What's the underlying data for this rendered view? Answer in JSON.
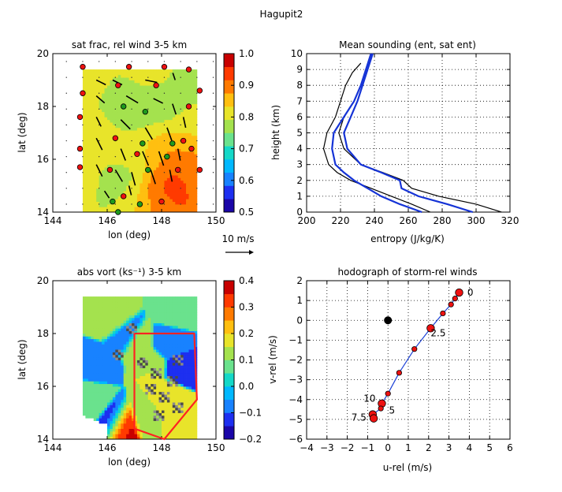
{
  "figure": {
    "title": "Hagupit2"
  },
  "colors": {
    "positive": "#ffcf25",
    "negative": "#1a4fd0",
    "red_box": "#ff2222",
    "sounding_env": "#000000",
    "sounding_sat": "#1533d6"
  },
  "chart_data": [
    {
      "id": "satfrac",
      "type": "heatmap",
      "title": "sat frac, rel wind 3-5 km",
      "xlabel": "lon (deg)",
      "ylabel": "lat (deg)",
      "xlim": [
        144,
        150
      ],
      "ylim": [
        14,
        20
      ],
      "xticks": [
        "144",
        "146",
        "148",
        "150"
      ],
      "yticks": [
        "14",
        "16",
        "18",
        "20"
      ],
      "colorbar": {
        "ticks": [
          "0.5",
          "0.6",
          "0.7",
          "0.8",
          "0.9",
          "1.0"
        ],
        "range": [
          0.5,
          1.0
        ],
        "colors": [
          "#1a06a8",
          "#1d2ff0",
          "#1882ff",
          "#00b8ff",
          "#14d8c8",
          "#6ae28d",
          "#a4e24e",
          "#e8e42a",
          "#ffbf10",
          "#ff7a00",
          "#ff3a00",
          "#c80000"
        ]
      },
      "scale_label": "10 m/s",
      "region_outline": [
        [
          145.1,
          14.0
        ],
        [
          145.1,
          19.4
        ],
        [
          149.3,
          19.4
        ],
        [
          149.3,
          14.1
        ]
      ],
      "field": [
        {
          "lon": 145.6,
          "lat": 17.0,
          "value": 0.82
        },
        {
          "lon": 146.4,
          "lat": 16.4,
          "value": 0.83
        },
        {
          "lon": 147.3,
          "lat": 16.0,
          "value": 0.8
        },
        {
          "lon": 146.7,
          "lat": 18.0,
          "value": 0.76
        },
        {
          "lon": 146.3,
          "lat": 15.3,
          "value": 0.74
        },
        {
          "lon": 145.5,
          "lat": 18.8,
          "value": 0.8
        },
        {
          "lon": 147.6,
          "lat": 19.0,
          "value": 0.81
        },
        {
          "lon": 147.0,
          "lat": 17.5,
          "value": 0.76
        },
        {
          "lon": 148.6,
          "lat": 18.6,
          "value": 0.78
        },
        {
          "lon": 149.0,
          "lat": 17.6,
          "value": 0.8
        },
        {
          "lon": 147.8,
          "lat": 18.0,
          "value": 0.76
        },
        {
          "lon": 148.8,
          "lat": 16.4,
          "value": 0.86
        },
        {
          "lon": 147.6,
          "lat": 16.6,
          "value": 0.86
        },
        {
          "lon": 148.4,
          "lat": 15.7,
          "value": 0.92
        },
        {
          "lon": 148.3,
          "lat": 15.0,
          "value": 0.95
        },
        {
          "lon": 148.0,
          "lat": 14.4,
          "value": 0.9
        },
        {
          "lon": 147.0,
          "lat": 14.5,
          "value": 0.82
        },
        {
          "lon": 145.5,
          "lat": 15.4,
          "value": 0.82
        },
        {
          "lon": 149.1,
          "lat": 15.2,
          "value": 0.9
        }
      ],
      "stations": [
        {
          "lon": 145.1,
          "lat": 19.5,
          "type": "red"
        },
        {
          "lon": 146.8,
          "lat": 19.5,
          "type": "red"
        },
        {
          "lon": 148.1,
          "lat": 19.5,
          "type": "red"
        },
        {
          "lon": 149.0,
          "lat": 19.4,
          "type": "red"
        },
        {
          "lon": 145.1,
          "lat": 18.5,
          "type": "red"
        },
        {
          "lon": 146.4,
          "lat": 18.8,
          "type": "red"
        },
        {
          "lon": 147.8,
          "lat": 18.8,
          "type": "red"
        },
        {
          "lon": 149.4,
          "lat": 18.6,
          "type": "red"
        },
        {
          "lon": 146.6,
          "lat": 18.0,
          "type": "green"
        },
        {
          "lon": 147.4,
          "lat": 17.8,
          "type": "green"
        },
        {
          "lon": 149.0,
          "lat": 18.0,
          "type": "red"
        },
        {
          "lon": 145.0,
          "lat": 17.6,
          "type": "red"
        },
        {
          "lon": 146.3,
          "lat": 16.8,
          "type": "red"
        },
        {
          "lon": 147.3,
          "lat": 16.6,
          "type": "green"
        },
        {
          "lon": 148.4,
          "lat": 16.6,
          "type": "green"
        },
        {
          "lon": 148.8,
          "lat": 16.7,
          "type": "red"
        },
        {
          "lon": 145.0,
          "lat": 16.4,
          "type": "red"
        },
        {
          "lon": 147.1,
          "lat": 16.2,
          "type": "red"
        },
        {
          "lon": 148.2,
          "lat": 16.1,
          "type": "green"
        },
        {
          "lon": 149.1,
          "lat": 16.4,
          "type": "red"
        },
        {
          "lon": 145.0,
          "lat": 15.7,
          "type": "red"
        },
        {
          "lon": 146.1,
          "lat": 15.6,
          "type": "red"
        },
        {
          "lon": 147.5,
          "lat": 15.6,
          "type": "green"
        },
        {
          "lon": 148.6,
          "lat": 15.6,
          "type": "red"
        },
        {
          "lon": 149.4,
          "lat": 15.6,
          "type": "red"
        },
        {
          "lon": 146.6,
          "lat": 14.6,
          "type": "red"
        },
        {
          "lon": 147.2,
          "lat": 14.3,
          "type": "green"
        },
        {
          "lon": 148.0,
          "lat": 14.4,
          "type": "red"
        },
        {
          "lon": 146.2,
          "lat": 14.4,
          "type": "green"
        },
        {
          "lon": 146.4,
          "lat": 14.0,
          "type": "green"
        }
      ],
      "winds": [
        {
          "lon": 145.6,
          "lat": 19.0,
          "u": 0.8,
          "v": -0.4
        },
        {
          "lon": 146.2,
          "lat": 19.0,
          "u": 0.8,
          "v": -0.4
        },
        {
          "lon": 147.4,
          "lat": 19.0,
          "u": 1.0,
          "v": -0.2
        },
        {
          "lon": 148.5,
          "lat": 19.0,
          "u": -0.2,
          "v": 0.6
        },
        {
          "lon": 145.6,
          "lat": 18.4,
          "u": 0.7,
          "v": -0.6
        },
        {
          "lon": 146.7,
          "lat": 18.4,
          "u": 1.0,
          "v": -0.6
        },
        {
          "lon": 147.7,
          "lat": 18.3,
          "u": 0.8,
          "v": -0.4
        },
        {
          "lon": 148.4,
          "lat": 18.1,
          "u": 0.3,
          "v": -0.9
        },
        {
          "lon": 145.6,
          "lat": 17.6,
          "u": 0.4,
          "v": -0.8
        },
        {
          "lon": 146.5,
          "lat": 17.5,
          "u": 0.8,
          "v": -0.8
        },
        {
          "lon": 147.4,
          "lat": 17.2,
          "u": 0.6,
          "v": -1.0
        },
        {
          "lon": 148.2,
          "lat": 17.2,
          "u": 0.4,
          "v": -1.1
        },
        {
          "lon": 148.8,
          "lat": 17.6,
          "u": 0.2,
          "v": -0.9
        },
        {
          "lon": 145.6,
          "lat": 16.8,
          "u": 0.5,
          "v": -1.0
        },
        {
          "lon": 146.5,
          "lat": 16.4,
          "u": 0.4,
          "v": -1.0
        },
        {
          "lon": 147.3,
          "lat": 16.3,
          "u": 0.5,
          "v": -1.2
        },
        {
          "lon": 147.9,
          "lat": 16.3,
          "u": 0.4,
          "v": -1.2
        },
        {
          "lon": 148.6,
          "lat": 16.4,
          "u": 0.2,
          "v": -1.0
        },
        {
          "lon": 145.6,
          "lat": 15.8,
          "u": 0.5,
          "v": -1.0
        },
        {
          "lon": 146.3,
          "lat": 15.6,
          "u": 0.6,
          "v": -1.0
        },
        {
          "lon": 146.9,
          "lat": 15.5,
          "u": 0.3,
          "v": -1.1
        },
        {
          "lon": 147.6,
          "lat": 15.6,
          "u": 0.4,
          "v": -1.2
        },
        {
          "lon": 148.3,
          "lat": 15.6,
          "u": 0.2,
          "v": -1.0
        },
        {
          "lon": 146.8,
          "lat": 15.0,
          "u": 0.2,
          "v": -0.8
        },
        {
          "lon": 145.9,
          "lat": 14.8,
          "u": 0.4,
          "v": -0.6
        }
      ]
    },
    {
      "id": "sounding",
      "type": "line",
      "title": "Mean sounding (ent, sat ent)",
      "xlabel": "entropy (J/kg/K)",
      "ylabel": "height (km)",
      "xlim": [
        200,
        320
      ],
      "ylim": [
        0,
        10
      ],
      "xticks": [
        "200",
        "220",
        "240",
        "260",
        "280",
        "300",
        "320"
      ],
      "yticks": [
        "0",
        "1",
        "2",
        "3",
        "4",
        "5",
        "6",
        "7",
        "8",
        "9",
        "10"
      ],
      "grid": true,
      "series": [
        {
          "kind": "env",
          "x": [
            273,
            262,
            250,
            238,
            226,
            218,
            213,
            210,
            212,
            217,
            220,
            223,
            227,
            232
          ],
          "y": [
            0,
            0.5,
            1,
            1.5,
            2,
            2.5,
            3,
            4,
            5,
            6,
            7,
            8,
            8.8,
            9.4
          ]
        },
        {
          "kind": "env",
          "x": [
            315,
            300,
            278,
            262,
            257,
            245,
            232,
            222,
            219,
            222,
            228,
            232,
            235,
            238
          ],
          "y": [
            0,
            0.5,
            1,
            1.5,
            2,
            2.5,
            3,
            4,
            5,
            6,
            7,
            8,
            9,
            10
          ]
        },
        {
          "kind": "sat",
          "x": [
            268,
            255,
            244,
            236,
            228,
            222,
            217,
            215,
            216,
            222,
            228,
            232,
            235,
            238
          ],
          "y": [
            0,
            0.5,
            1,
            1.5,
            2,
            2.5,
            3,
            4,
            5,
            6,
            7,
            8,
            9,
            10
          ]
        },
        {
          "kind": "sat",
          "x": [
            298,
            283,
            266,
            256,
            255,
            244,
            232,
            224,
            222,
            226,
            230,
            233,
            236,
            239
          ],
          "y": [
            0,
            0.5,
            1,
            1.5,
            2,
            2.5,
            3,
            4,
            5,
            6,
            7,
            8,
            9,
            10
          ]
        }
      ]
    },
    {
      "id": "absvort",
      "type": "heatmap",
      "title": "abs vort (ks⁻¹) 3-5 km",
      "xlabel": "lon (deg)",
      "ylabel": "lat (deg)",
      "xlim": [
        144,
        150
      ],
      "ylim": [
        14,
        20
      ],
      "xticks": [
        "144",
        "146",
        "148",
        "150"
      ],
      "yticks": [
        "14",
        "16",
        "18",
        "20"
      ],
      "colorbar": {
        "ticks": [
          "−0.2",
          "−0.1",
          "0.0",
          "0.1",
          "0.2",
          "0.3",
          "0.4"
        ],
        "range": [
          -0.2,
          0.4
        ],
        "colors": [
          "#1a06a8",
          "#1d2ff0",
          "#1882ff",
          "#00b8ff",
          "#14d8c8",
          "#6ae28d",
          "#a4e24e",
          "#e8e42a",
          "#ffbf10",
          "#ff7a00",
          "#ff3a00",
          "#c80000"
        ]
      },
      "region_outline": [
        [
          145.1,
          14.0
        ],
        [
          145.1,
          19.4
        ],
        [
          149.3,
          19.4
        ],
        [
          149.3,
          14.1
        ]
      ],
      "field": [
        {
          "lon": 146.2,
          "lat": 18.4,
          "value": 0.12
        },
        {
          "lon": 145.7,
          "lat": 16.9,
          "value": -0.06
        },
        {
          "lon": 146.6,
          "lat": 17.9,
          "value": -0.09
        },
        {
          "lon": 146.5,
          "lat": 14.7,
          "value": 0.36
        },
        {
          "lon": 146.3,
          "lat": 14.8,
          "value": -0.14
        },
        {
          "lon": 147.6,
          "lat": 16.8,
          "value": 0.15
        },
        {
          "lon": 148.3,
          "lat": 17.6,
          "value": -0.08
        },
        {
          "lon": 148.7,
          "lat": 16.7,
          "value": -0.12
        },
        {
          "lon": 148.2,
          "lat": 15.6,
          "value": 0.2
        },
        {
          "lon": 147.4,
          "lat": 15.0,
          "value": 0.14
        },
        {
          "lon": 148.6,
          "lat": 15.0,
          "value": 0.18
        },
        {
          "lon": 147.1,
          "lat": 17.6,
          "value": 0.12
        },
        {
          "lon": 145.5,
          "lat": 15.4,
          "value": 0.1
        },
        {
          "lon": 148.6,
          "lat": 18.9,
          "value": 0.09
        }
      ],
      "missing": [
        {
          "lon": 146.9,
          "lat": 18.2
        },
        {
          "lon": 146.4,
          "lat": 17.2
        },
        {
          "lon": 147.3,
          "lat": 16.9
        },
        {
          "lon": 147.8,
          "lat": 16.5
        },
        {
          "lon": 148.4,
          "lat": 16.2
        },
        {
          "lon": 148.1,
          "lat": 15.6
        },
        {
          "lon": 148.6,
          "lat": 15.2
        },
        {
          "lon": 147.9,
          "lat": 14.9
        },
        {
          "lon": 148.6,
          "lat": 17.0
        },
        {
          "lon": 147.6,
          "lat": 15.9
        }
      ],
      "box": [
        [
          147.0,
          18.0
        ],
        [
          149.2,
          18.0
        ],
        [
          149.3,
          15.5
        ],
        [
          148.1,
          14.0
        ],
        [
          147.0,
          14.4
        ]
      ]
    },
    {
      "id": "hodograph",
      "type": "scatter",
      "title": "hodograph of storm-rel winds",
      "xlabel": "u-rel (m/s)",
      "ylabel": "v-rel (m/s)",
      "xlim": [
        -4,
        6
      ],
      "ylim": [
        -6,
        2
      ],
      "xticks": [
        "−4",
        "−3",
        "−2",
        "−1",
        "0",
        "1",
        "2",
        "3",
        "4",
        "5",
        "6"
      ],
      "yticks": [
        "−6",
        "−5",
        "−4",
        "−3",
        "−2",
        "−1",
        "0",
        "1",
        "2"
      ],
      "grid": true,
      "points": [
        {
          "u": 3.5,
          "v": 1.4
        },
        {
          "u": 3.3,
          "v": 1.1
        },
        {
          "u": 3.1,
          "v": 0.8
        },
        {
          "u": 2.7,
          "v": 0.35
        },
        {
          "u": 2.1,
          "v": -0.4
        },
        {
          "u": 1.3,
          "v": -1.45
        },
        {
          "u": 0.55,
          "v": -2.65
        },
        {
          "u": 0.0,
          "v": -3.7
        },
        {
          "u": -0.3,
          "v": -4.2
        },
        {
          "u": -0.35,
          "v": -4.45
        },
        {
          "u": -0.75,
          "v": -4.75
        },
        {
          "u": -0.7,
          "v": -4.95
        }
      ],
      "large_points": [
        0,
        4,
        8,
        10,
        11
      ],
      "origin": {
        "u": 0,
        "v": 0
      },
      "labels": [
        {
          "text": "0",
          "u": 3.9,
          "v": 1.4
        },
        {
          "text": "2.5",
          "u": 2.1,
          "v": -0.65
        },
        {
          "text": "10",
          "u": -1.2,
          "v": -3.95
        },
        {
          "text": "5",
          "u": 0.05,
          "v": -4.55
        },
        {
          "text": "7.5",
          "u": -1.8,
          "v": -4.9
        }
      ]
    }
  ]
}
